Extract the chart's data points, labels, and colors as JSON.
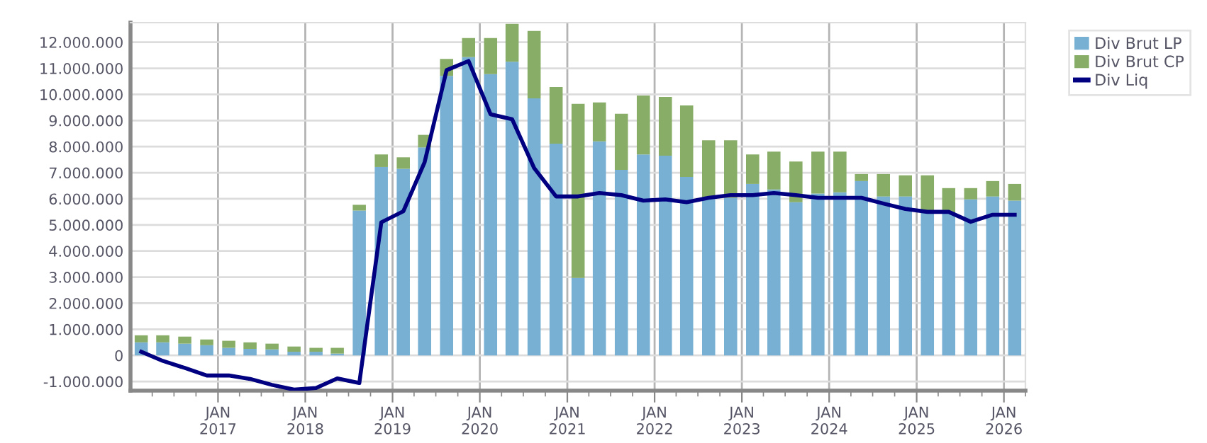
{
  "chart_data": {
    "type": "bar",
    "stacked": true,
    "x": [
      "2016-02-15",
      "2016-05-15",
      "2016-08-15",
      "2016-11-15",
      "2017-02-15",
      "2017-05-15",
      "2017-08-15",
      "2017-11-15",
      "2018-02-15",
      "2018-05-15",
      "2018-08-15",
      "2018-11-15",
      "2019-02-15",
      "2019-05-15",
      "2019-08-15",
      "2019-11-15",
      "2020-02-15",
      "2020-05-15",
      "2020-08-15",
      "2020-11-15",
      "2021-02-15",
      "2021-05-15",
      "2021-08-15",
      "2021-11-15",
      "2022-02-15",
      "2022-05-15",
      "2022-08-15",
      "2022-11-15",
      "2023-02-15",
      "2023-05-15",
      "2023-08-15",
      "2023-11-15",
      "2024-02-15",
      "2024-05-15",
      "2024-08-15",
      "2024-11-15",
      "2025-02-15",
      "2025-05-15",
      "2025-08-15",
      "2025-11-15",
      "2026-02-15"
    ],
    "series": [
      {
        "name": "Div Brut LP",
        "color": "#77b0d3",
        "values": [
          500000,
          500000,
          450000,
          390000,
          290000,
          250000,
          230000,
          140000,
          140000,
          70000,
          5550000,
          7220000,
          7150000,
          7970000,
          10710000,
          11430000,
          10780000,
          11250000,
          9850000,
          8110000,
          2970000,
          8200000,
          7110000,
          7700000,
          7650000,
          6840000,
          6040000,
          6040000,
          6570000,
          6360000,
          5870000,
          6200000,
          6250000,
          6680000,
          6090000,
          6090000,
          5500000,
          5440000,
          5980000,
          6090000,
          5930000
        ]
      },
      {
        "name": "Div Brut CP",
        "color": "#88ad67",
        "values": [
          270000,
          270000,
          270000,
          220000,
          270000,
          250000,
          220000,
          200000,
          150000,
          220000,
          220000,
          480000,
          440000,
          480000,
          650000,
          730000,
          1380000,
          1450000,
          2580000,
          2170000,
          6670000,
          1490000,
          2150000,
          2260000,
          2250000,
          2740000,
          2200000,
          2200000,
          1130000,
          1450000,
          1560000,
          1610000,
          1560000,
          270000,
          860000,
          810000,
          1400000,
          970000,
          430000,
          590000,
          640000
        ]
      },
      {
        "name": "Div Liq",
        "type": "line",
        "color": "#000080",
        "values": [
          140000,
          -210000,
          -480000,
          -770000,
          -770000,
          -900000,
          -1130000,
          -1310000,
          -1250000,
          -880000,
          -1060000,
          5100000,
          5520000,
          7400000,
          10930000,
          11280000,
          9240000,
          9050000,
          7180000,
          6090000,
          6090000,
          6220000,
          6140000,
          5930000,
          5980000,
          5870000,
          6040000,
          6140000,
          6140000,
          6220000,
          6140000,
          6040000,
          6040000,
          6040000,
          5820000,
          5610000,
          5500000,
          5500000,
          5120000,
          5390000,
          5390000
        ]
      }
    ],
    "xlim": [
      "2016-01-01",
      "2026-04-01"
    ],
    "xticks": [
      {
        "value": "2017-01-01",
        "label": "JAN\n2017"
      },
      {
        "value": "2018-01-01",
        "label": "JAN\n2018"
      },
      {
        "value": "2019-01-01",
        "label": "JAN\n2019"
      },
      {
        "value": "2020-01-01",
        "label": "JAN\n2020"
      },
      {
        "value": "2021-01-01",
        "label": "JAN\n2021"
      },
      {
        "value": "2022-01-01",
        "label": "JAN\n2022"
      },
      {
        "value": "2023-01-01",
        "label": "JAN\n2023"
      },
      {
        "value": "2024-01-01",
        "label": "JAN\n2024"
      },
      {
        "value": "2025-01-01",
        "label": "JAN\n2025"
      },
      {
        "value": "2026-01-01",
        "label": "JAN\n2026"
      }
    ],
    "ylim": [
      -1350000,
      12750000
    ],
    "yticks": [
      {
        "value": -1000000,
        "label": "-1.000.000"
      },
      0,
      {
        "value": 1000000,
        "label": "1.000.000"
      },
      {
        "value": 2000000,
        "label": "2.000.000"
      },
      {
        "value": 3000000,
        "label": "3.000.000"
      },
      {
        "value": 4000000,
        "label": "4.000.000"
      },
      {
        "value": 5000000,
        "label": "5.000.000"
      },
      {
        "value": 6000000,
        "label": "6.000.000"
      },
      {
        "value": 7000000,
        "label": "7.000.000"
      },
      {
        "value": 8000000,
        "label": "8.000.000"
      },
      {
        "value": 9000000,
        "label": "9.000.000"
      },
      {
        "value": 10000000,
        "label": "10.000.000"
      },
      {
        "value": 11000000,
        "label": "11.000.000"
      },
      {
        "value": 12000000,
        "label": "12.000.000"
      }
    ],
    "grid": true,
    "legend": "top right"
  }
}
